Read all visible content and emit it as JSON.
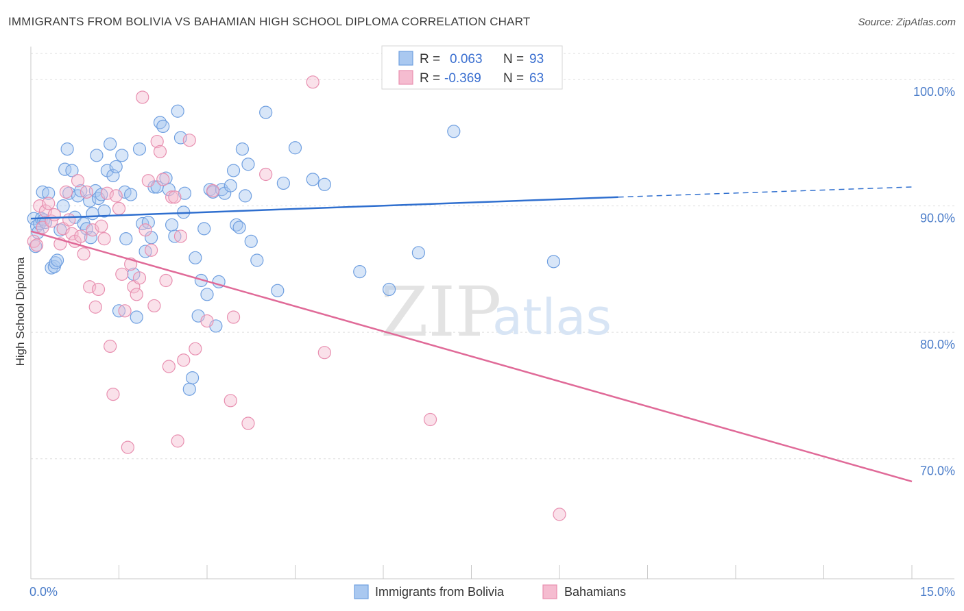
{
  "title": "IMMIGRANTS FROM BOLIVIA VS BAHAMIAN HIGH SCHOOL DIPLOMA CORRELATION CHART",
  "source": "Source: ZipAtlas.com",
  "watermark": {
    "zip": "ZIP",
    "atlas": "atlas"
  },
  "colors": {
    "blue_fill": "#a9c8f0",
    "blue_stroke": "#6f9fe0",
    "blue_line": "#2f6fcf",
    "pink_fill": "#f5bcd0",
    "pink_stroke": "#e88fb0",
    "pink_line": "#e06a98",
    "grid": "#dddddd",
    "tick_label": "#4a7cc9"
  },
  "legend": {
    "rows": [
      {
        "r_label": "R =",
        "r_value": "0.063",
        "n_label": "N =",
        "n_value": "93"
      },
      {
        "r_label": "R =",
        "r_value": "-0.369",
        "n_label": "N =",
        "n_value": "63"
      }
    ]
  },
  "chart_data": {
    "type": "scatter",
    "ylabel": "High School Diploma",
    "xlabel": "",
    "xlim": [
      0,
      15
    ],
    "ylim": [
      60.5,
      102.5
    ],
    "x_tick_labels": [
      "0.0%",
      "15.0%"
    ],
    "y_ticks": [
      70,
      80,
      90,
      100
    ],
    "y_tick_labels": [
      "70.0%",
      "80.0%",
      "90.0%",
      "100.0%"
    ],
    "grid": true,
    "legend_position": "top-center",
    "series": [
      {
        "name": "Immigrants from Bolivia",
        "color": "#6f9fe0",
        "trend": {
          "x": [
            0,
            10.0
          ],
          "y": [
            89.0,
            90.7
          ],
          "dashed_to_x": 15,
          "dashed_to_y": 91.5
        },
        "points": [
          [
            0.05,
            89.0
          ],
          [
            0.08,
            86.8
          ],
          [
            0.1,
            88.4
          ],
          [
            0.12,
            87.9
          ],
          [
            0.15,
            88.6
          ],
          [
            0.18,
            89.0
          ],
          [
            0.2,
            91.1
          ],
          [
            0.22,
            88.9
          ],
          [
            0.25,
            88.7
          ],
          [
            0.3,
            91.0
          ],
          [
            0.35,
            85.1
          ],
          [
            0.4,
            85.2
          ],
          [
            0.42,
            85.5
          ],
          [
            0.45,
            85.7
          ],
          [
            0.5,
            88.1
          ],
          [
            0.55,
            90.0
          ],
          [
            0.58,
            92.9
          ],
          [
            0.62,
            94.5
          ],
          [
            0.65,
            91.0
          ],
          [
            0.7,
            92.8
          ],
          [
            0.75,
            89.1
          ],
          [
            0.8,
            90.8
          ],
          [
            0.85,
            91.2
          ],
          [
            0.9,
            88.6
          ],
          [
            0.95,
            88.2
          ],
          [
            1.0,
            90.4
          ],
          [
            1.02,
            87.5
          ],
          [
            1.05,
            89.4
          ],
          [
            1.1,
            91.2
          ],
          [
            1.12,
            94.0
          ],
          [
            1.15,
            90.6
          ],
          [
            1.2,
            90.9
          ],
          [
            1.25,
            89.6
          ],
          [
            1.3,
            92.8
          ],
          [
            1.35,
            94.9
          ],
          [
            1.4,
            92.4
          ],
          [
            1.45,
            93.1
          ],
          [
            1.5,
            81.7
          ],
          [
            1.55,
            94.0
          ],
          [
            1.6,
            91.1
          ],
          [
            1.62,
            87.4
          ],
          [
            1.7,
            90.9
          ],
          [
            1.75,
            84.6
          ],
          [
            1.8,
            81.2
          ],
          [
            1.85,
            94.5
          ],
          [
            1.9,
            88.6
          ],
          [
            1.95,
            86.4
          ],
          [
            2.0,
            88.7
          ],
          [
            2.05,
            87.5
          ],
          [
            2.1,
            91.5
          ],
          [
            2.15,
            91.5
          ],
          [
            2.2,
            96.6
          ],
          [
            2.25,
            96.3
          ],
          [
            2.3,
            92.2
          ],
          [
            2.35,
            91.3
          ],
          [
            2.4,
            88.5
          ],
          [
            2.45,
            87.6
          ],
          [
            2.5,
            97.5
          ],
          [
            2.55,
            95.4
          ],
          [
            2.6,
            89.5
          ],
          [
            2.62,
            91.0
          ],
          [
            2.7,
            75.5
          ],
          [
            2.75,
            76.4
          ],
          [
            2.8,
            85.9
          ],
          [
            2.85,
            81.3
          ],
          [
            2.9,
            84.1
          ],
          [
            2.95,
            88.2
          ],
          [
            3.0,
            83.0
          ],
          [
            3.05,
            91.3
          ],
          [
            3.1,
            91.1
          ],
          [
            3.15,
            80.5
          ],
          [
            3.2,
            84.0
          ],
          [
            3.25,
            91.3
          ],
          [
            3.3,
            91.0
          ],
          [
            3.4,
            91.6
          ],
          [
            3.45,
            92.8
          ],
          [
            3.5,
            88.5
          ],
          [
            3.55,
            88.3
          ],
          [
            3.6,
            94.5
          ],
          [
            3.65,
            90.8
          ],
          [
            3.7,
            93.3
          ],
          [
            3.75,
            87.2
          ],
          [
            3.85,
            85.7
          ],
          [
            4.0,
            97.4
          ],
          [
            4.2,
            83.3
          ],
          [
            4.3,
            91.8
          ],
          [
            4.5,
            94.6
          ],
          [
            4.8,
            92.1
          ],
          [
            5.0,
            91.7
          ],
          [
            5.6,
            84.8
          ],
          [
            6.1,
            83.4
          ],
          [
            6.6,
            86.3
          ],
          [
            7.2,
            95.9
          ],
          [
            8.9,
            85.6
          ]
        ]
      },
      {
        "name": "Bahamians",
        "color": "#e88fb0",
        "trend": {
          "x": [
            0,
            15
          ],
          "y": [
            88.0,
            68.2
          ]
        },
        "points": [
          [
            0.05,
            87.2
          ],
          [
            0.1,
            86.9
          ],
          [
            0.15,
            90.0
          ],
          [
            0.2,
            88.3
          ],
          [
            0.25,
            89.6
          ],
          [
            0.3,
            90.2
          ],
          [
            0.35,
            88.8
          ],
          [
            0.4,
            89.3
          ],
          [
            0.5,
            87.0
          ],
          [
            0.55,
            88.2
          ],
          [
            0.6,
            91.1
          ],
          [
            0.65,
            88.9
          ],
          [
            0.7,
            87.8
          ],
          [
            0.75,
            87.2
          ],
          [
            0.8,
            92.0
          ],
          [
            0.85,
            87.6
          ],
          [
            0.9,
            86.2
          ],
          [
            0.95,
            91.1
          ],
          [
            1.0,
            83.6
          ],
          [
            1.05,
            88.1
          ],
          [
            1.1,
            82.0
          ],
          [
            1.15,
            83.4
          ],
          [
            1.2,
            88.4
          ],
          [
            1.25,
            87.4
          ],
          [
            1.3,
            91.0
          ],
          [
            1.35,
            78.9
          ],
          [
            1.4,
            75.1
          ],
          [
            1.45,
            90.8
          ],
          [
            1.5,
            89.8
          ],
          [
            1.55,
            84.6
          ],
          [
            1.6,
            81.7
          ],
          [
            1.65,
            70.9
          ],
          [
            1.7,
            85.4
          ],
          [
            1.75,
            83.6
          ],
          [
            1.8,
            83.0
          ],
          [
            1.85,
            84.3
          ],
          [
            1.9,
            98.6
          ],
          [
            1.95,
            88.1
          ],
          [
            2.0,
            92.0
          ],
          [
            2.05,
            86.5
          ],
          [
            2.1,
            82.1
          ],
          [
            2.15,
            95.1
          ],
          [
            2.2,
            94.3
          ],
          [
            2.25,
            92.1
          ],
          [
            2.3,
            84.1
          ],
          [
            2.35,
            77.3
          ],
          [
            2.4,
            90.7
          ],
          [
            2.45,
            90.7
          ],
          [
            2.5,
            71.4
          ],
          [
            2.55,
            87.6
          ],
          [
            2.6,
            77.8
          ],
          [
            2.7,
            95.2
          ],
          [
            2.8,
            78.7
          ],
          [
            3.0,
            80.9
          ],
          [
            3.1,
            91.2
          ],
          [
            3.4,
            74.6
          ],
          [
            3.45,
            81.2
          ],
          [
            3.7,
            72.8
          ],
          [
            4.0,
            92.5
          ],
          [
            4.8,
            99.8
          ],
          [
            5.0,
            78.4
          ],
          [
            6.8,
            73.1
          ],
          [
            9.0,
            65.6
          ]
        ]
      }
    ]
  },
  "bottom_legend": {
    "items": [
      {
        "label": "Immigrants from Bolivia"
      },
      {
        "label": "Bahamians"
      }
    ]
  }
}
